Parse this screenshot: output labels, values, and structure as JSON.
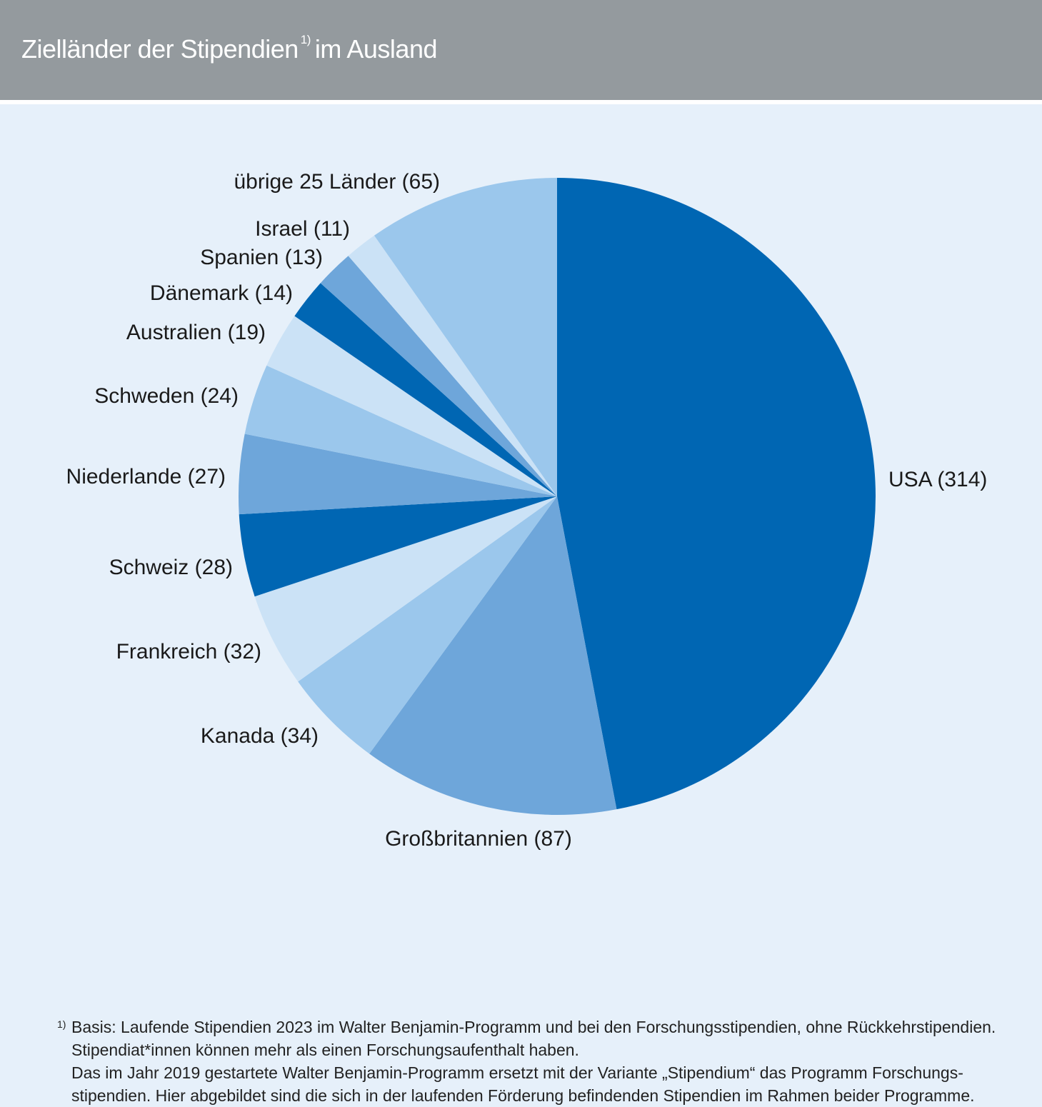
{
  "header": {
    "title_main": "Zielländer der Stipendien",
    "title_sup": "1)",
    "title_tail": "im Ausland"
  },
  "chart_data": {
    "type": "pie",
    "title": "Zielländer der Stipendien im Ausland",
    "start_angle_deg": 0,
    "direction": "clockwise",
    "slices": [
      {
        "label": "USA (314)",
        "value": 314,
        "color": "#0066b3"
      },
      {
        "label": "Großbritannien (87)",
        "value": 87,
        "color": "#6ea6da"
      },
      {
        "label": "Kanada (34)",
        "value": 34,
        "color": "#9bc7ec"
      },
      {
        "label": "Frankreich (32)",
        "value": 32,
        "color": "#cbe2f6"
      },
      {
        "label": "Schweiz (28)",
        "value": 28,
        "color": "#0066b3"
      },
      {
        "label": "Niederlande (27)",
        "value": 27,
        "color": "#6ea6da"
      },
      {
        "label": "Schweden (24)",
        "value": 24,
        "color": "#9bc7ec"
      },
      {
        "label": "Australien (19)",
        "value": 19,
        "color": "#cbe2f6"
      },
      {
        "label": "Dänemark (14)",
        "value": 14,
        "color": "#0066b3"
      },
      {
        "label": "Spanien (13)",
        "value": 13,
        "color": "#6ea6da"
      },
      {
        "label": "Israel (11)",
        "value": 11,
        "color": "#cbe2f6"
      },
      {
        "label": "übrige 25 Länder (65)",
        "value": 65,
        "color": "#9bc7ec"
      }
    ]
  },
  "footnote": {
    "marker": "1)",
    "lines": [
      "Basis: Laufende Stipendien 2023 im Walter Benjamin-Programm und bei den Forschungsstipendien, ohne Rückkehrstipendien.",
      "Stipendiat*innen können mehr als einen Forschungsaufenthalt haben.",
      "Das im Jahr 2019 gestartete Walter Benjamin-Programm ersetzt mit der Variante „Stipendium“ das Programm Forschungs-",
      "stipendien. Hier abgebildet sind die sich in der laufenden Förderung befindenden Stipendien im Rahmen beider Programme."
    ]
  }
}
